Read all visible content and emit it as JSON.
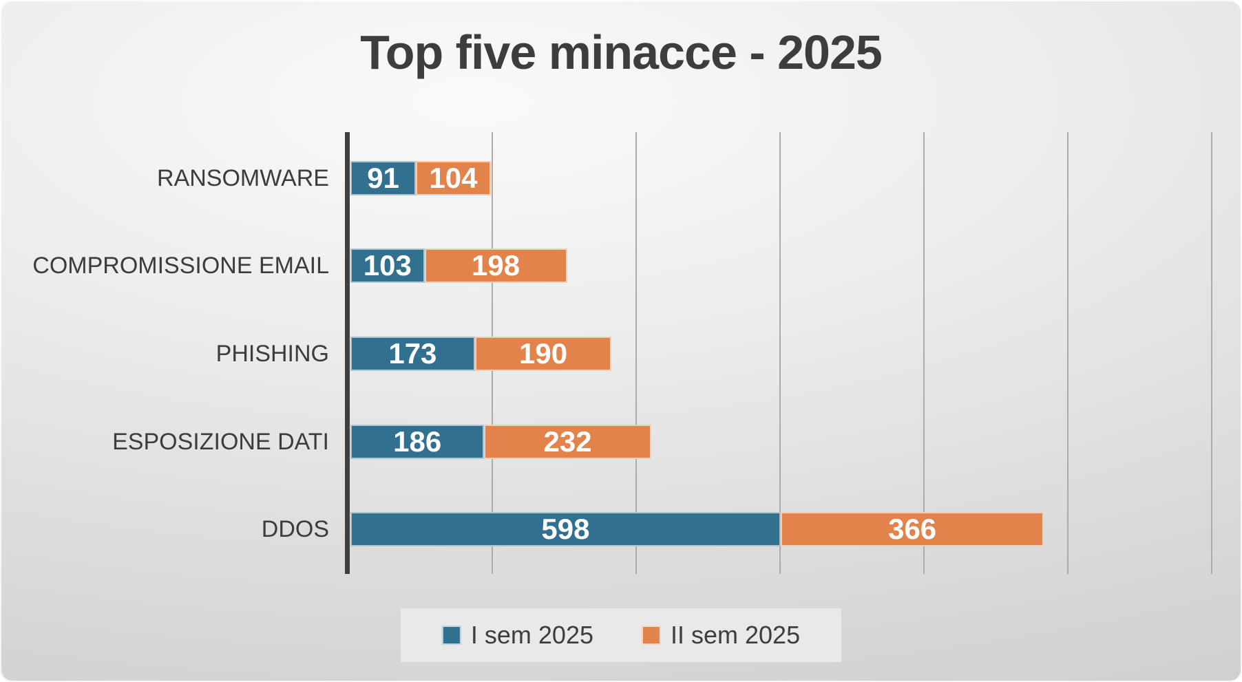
{
  "title": "Top five minacce - 2025",
  "chart_data": {
    "type": "bar",
    "orientation": "horizontal",
    "stacked": true,
    "title": "Top five minacce - 2025",
    "categories": [
      "RANSOMWARE",
      "COMPROMISSIONE EMAIL",
      "PHISHING",
      "ESPOSIZIONE DATI",
      "DDOS"
    ],
    "series": [
      {
        "name": "I sem 2025",
        "color": "#32708f",
        "values": [
          91,
          103,
          173,
          186,
          598
        ]
      },
      {
        "name": "II sem 2025",
        "color": "#e3834c",
        "values": [
          104,
          198,
          190,
          232,
          366
        ]
      }
    ],
    "xlim": [
      0,
      1240
    ],
    "gridline_interval": 200,
    "grid": true,
    "legend_position": "bottom",
    "data_labels": true,
    "data_label_color": "#ffffff",
    "axis_color": "#3f3f3f",
    "gridline_color": "#ababab",
    "title_color": "#3d3d3d",
    "label_color": "#3c3c3c"
  }
}
